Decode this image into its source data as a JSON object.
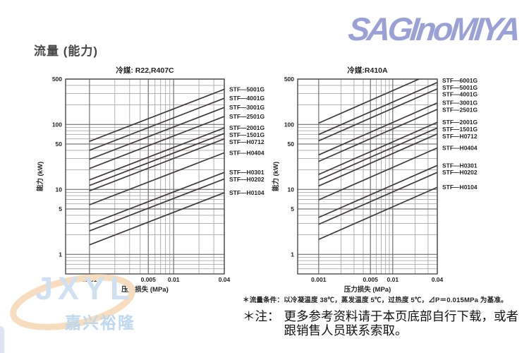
{
  "page": {
    "title": "流量 (能力)",
    "logo": "SAGInoMIYA"
  },
  "notes": {
    "condition": "＊流量条件：以冷凝温度 38℃，蒸发温度 5℃，过热度 5℃，⊿P＝0.015MPa 为基准。",
    "note_prefix": "＊注：",
    "note_line1": "更多参考资料请于本页底部自行下载，或者",
    "note_line2": "跟销售人员联系索取。"
  },
  "watermark": {
    "text": "JXYL",
    "subtext": "嘉兴裕隆"
  },
  "colors": {
    "logo": "#9aa1d6",
    "series_line": "#423838",
    "grid_minor": "#a9a9a9",
    "grid_labeled": "#787878",
    "plot_border": "#4a4a4a",
    "tick_text": "#222222",
    "watermark_blue": "#cfe0f3",
    "watermark_cjk": "#bdd7ee",
    "watermark_swoosh": "#f7dcbd",
    "corner_bar": "#dbe3f4"
  },
  "chart_data": [
    {
      "type": "line",
      "title": "冷媒: R22,R407C",
      "xlabel": "压力损失 (MPa)",
      "ylabel": "能力 (kW)",
      "x_scale": "log",
      "y_scale": "log",
      "xlim": [
        0.00052,
        0.04
      ],
      "ylim": [
        0.5,
        500
      ],
      "x_ticks": [
        "0.001",
        "0.005",
        "0.01",
        "0.04"
      ],
      "y_ticks": [
        "500",
        "100",
        "50",
        "10",
        "5",
        "1"
      ],
      "grid": true,
      "legend_position": "right-of-plot",
      "relation": "capacity proportional to sqrt(pressure drop); straight parallel lines on log-log axes",
      "series": [
        {
          "name": "STF—5001G",
          "points": [
            [
              0.001,
              55
            ],
            [
              0.04,
              348
            ]
          ]
        },
        {
          "name": "STF—4001G",
          "points": [
            [
              0.001,
              40
            ],
            [
              0.04,
              253
            ]
          ]
        },
        {
          "name": "STF—3001G",
          "points": [
            [
              0.001,
              29
            ],
            [
              0.04,
              183
            ]
          ]
        },
        {
          "name": "STF—2501G",
          "points": [
            [
              0.001,
              21
            ],
            [
              0.04,
              133
            ]
          ]
        },
        {
          "name": "STF—2001G",
          "points": [
            [
              0.001,
              14
            ],
            [
              0.04,
              88.5
            ]
          ]
        },
        {
          "name": "STF—1501G",
          "points": [
            [
              0.001,
              11.5
            ],
            [
              0.04,
              72.7
            ]
          ]
        },
        {
          "name": "STF—H0712",
          "points": [
            [
              0.001,
              9.5
            ],
            [
              0.04,
              60
            ]
          ]
        },
        {
          "name": "STF—H0404",
          "points": [
            [
              0.001,
              5.8
            ],
            [
              0.04,
              36.7
            ]
          ]
        },
        {
          "name": "STF—H0301",
          "points": [
            [
              0.001,
              2.9
            ],
            [
              0.04,
              18.3
            ]
          ]
        },
        {
          "name": "STF—H0202",
          "points": [
            [
              0.001,
              2.3
            ],
            [
              0.04,
              14.5
            ]
          ]
        },
        {
          "name": "STF—H0104",
          "points": [
            [
              0.001,
              1.4
            ],
            [
              0.04,
              8.9
            ]
          ]
        }
      ]
    },
    {
      "type": "line",
      "title": "冷媒:R410A",
      "xlabel": "压力损失 (MPa)",
      "ylabel": "能力 (kW)",
      "x_scale": "log",
      "y_scale": "log",
      "xlim": [
        0.00052,
        0.04
      ],
      "ylim": [
        0.5,
        500
      ],
      "x_ticks": [
        "0.001",
        "0.005",
        "0.01",
        "0.04"
      ],
      "y_ticks": [
        "500",
        "100",
        "50",
        "10",
        "5",
        "1"
      ],
      "grid": true,
      "legend_position": "right-of-plot",
      "relation": "capacity proportional to sqrt(pressure drop); straight parallel lines on log-log axes; top line clipped at 500 kW",
      "series": [
        {
          "name": "STF—6001G",
          "points": [
            [
              0.001,
              105
            ],
            [
              0.04,
              664
            ]
          ]
        },
        {
          "name": "STF—5001G",
          "points": [
            [
              0.001,
              70
            ],
            [
              0.04,
              443
            ]
          ]
        },
        {
          "name": "STF—4001G",
          "points": [
            [
              0.001,
              56
            ],
            [
              0.04,
              354
            ]
          ]
        },
        {
          "name": "STF—3001G",
          "points": [
            [
              0.001,
              34
            ],
            [
              0.04,
              215
            ]
          ]
        },
        {
          "name": "STF—2501G",
          "points": [
            [
              0.001,
              27
            ],
            [
              0.04,
              171
            ]
          ]
        },
        {
          "name": "STF—2001G",
          "points": [
            [
              0.001,
              17
            ],
            [
              0.04,
              108
            ]
          ]
        },
        {
          "name": "STF—1501G",
          "points": [
            [
              0.001,
              14
            ],
            [
              0.04,
              88.5
            ]
          ]
        },
        {
          "name": "STF—H0712",
          "points": [
            [
              0.001,
              11.3
            ],
            [
              0.04,
              71.5
            ]
          ]
        },
        {
          "name": "STF—H0404",
          "points": [
            [
              0.001,
              6.9
            ],
            [
              0.04,
              43.6
            ]
          ]
        },
        {
          "name": "STF—H0301",
          "points": [
            [
              0.001,
              3.7
            ],
            [
              0.04,
              23.4
            ]
          ]
        },
        {
          "name": "STF—H0202",
          "points": [
            [
              0.001,
              2.9
            ],
            [
              0.04,
              18.3
            ]
          ]
        },
        {
          "name": "STF—H0104",
          "points": [
            [
              0.001,
              1.7
            ],
            [
              0.04,
              10.8
            ]
          ]
        }
      ]
    }
  ]
}
